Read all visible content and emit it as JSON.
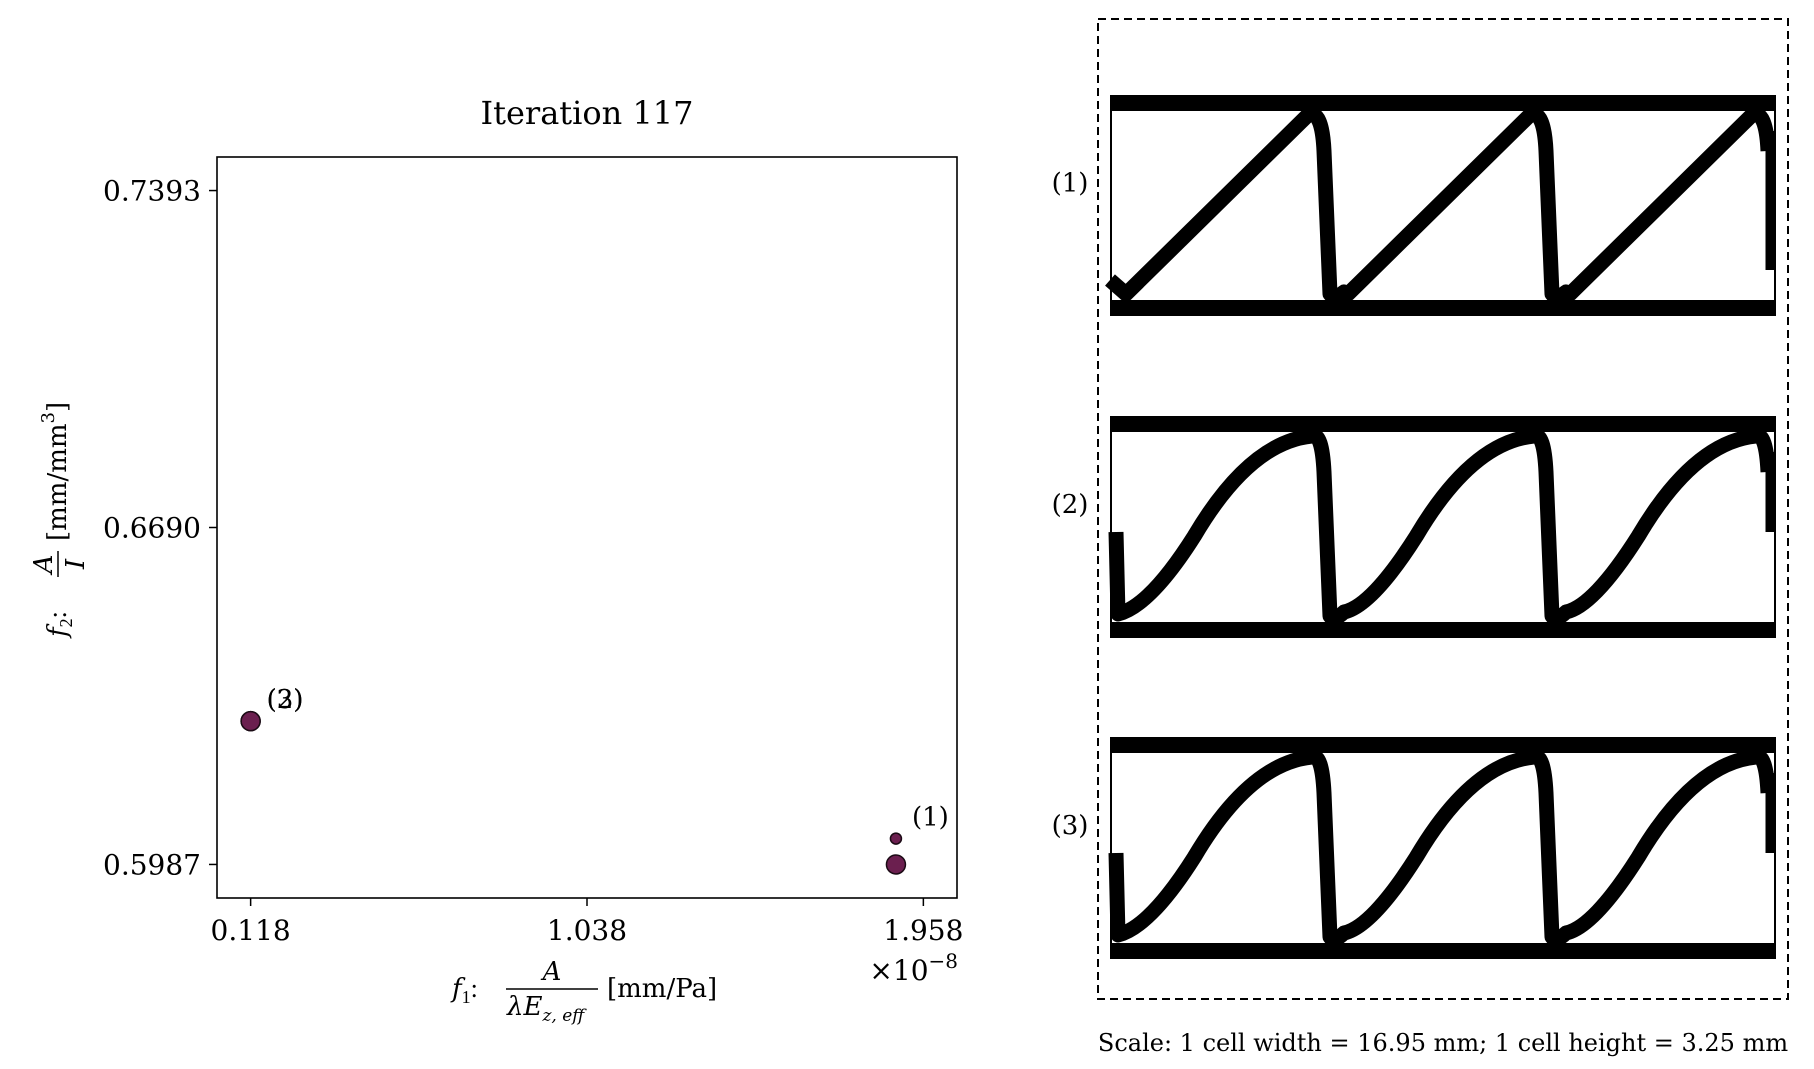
{
  "chart_data": {
    "type": "scatter",
    "title": "Iteration 117",
    "xlabel": {
      "prefix": "f",
      "prefix_sub": "1",
      "colon": ":",
      "numerator": "A",
      "denominator": "λE",
      "denominator_sub": "z, eff",
      "unit": "[mm/Pa]"
    },
    "ylabel": {
      "prefix": "f",
      "prefix_sub": "2",
      "colon": ":",
      "numerator": "A",
      "denominator": "I",
      "unit": "[mm/mm",
      "unit_sup": "3",
      "unit_close": "]"
    },
    "x_ticks": [
      "0.118",
      "1.038",
      "1.958"
    ],
    "x_tick_values": [
      0.118,
      1.038,
      1.958
    ],
    "x_multiplier": "×10",
    "x_multiplier_exp": "−8",
    "y_ticks": [
      "0.5987",
      "0.6690",
      "0.7393"
    ],
    "y_tick_values": [
      0.5987,
      0.669,
      0.7393
    ],
    "xlim": [
      0.026,
      2.05
    ],
    "ylim": [
      0.5917,
      0.7463
    ],
    "points": [
      {
        "label": "(1)",
        "x": 1.883,
        "y": 0.6041,
        "size": "small"
      },
      {
        "label": "(1)",
        "x": 1.883,
        "y": 0.5987,
        "size": "large"
      },
      {
        "label": "(2)",
        "x": 0.118,
        "y": 0.6286,
        "size": "large"
      },
      {
        "label": "(3)",
        "x": 0.118,
        "y": 0.6286,
        "size": "large"
      }
    ],
    "marker_color": "#6b1f4f",
    "point_labels": [
      {
        "text": "(1)",
        "x": 1.883,
        "y": 0.6041
      },
      {
        "text": "(2)",
        "x": 0.118,
        "y": 0.6286
      },
      {
        "text": "(3)",
        "x": 0.118,
        "y": 0.6286
      }
    ]
  },
  "structures": {
    "labels": [
      "(1)",
      "(2)",
      "(3)"
    ],
    "caption": "Scale: 1 cell width = 16.95 mm; 1 cell height = 3.25 mm"
  }
}
